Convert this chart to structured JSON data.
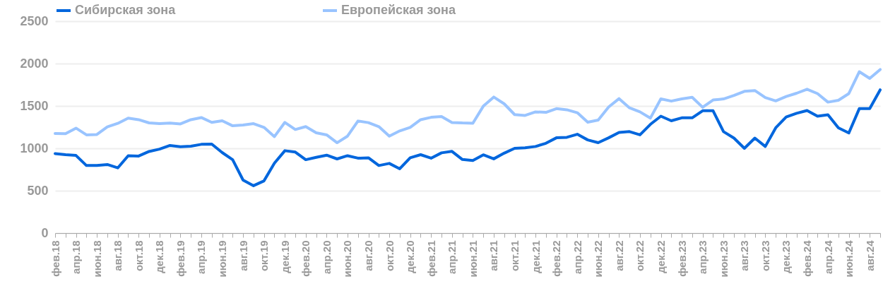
{
  "chart_data": {
    "type": "line",
    "categories": [
      "фев.18",
      null,
      "апр.18",
      null,
      "июн.18",
      null,
      "авг.18",
      null,
      "окт.18",
      null,
      "дек.18",
      null,
      "фев.19",
      null,
      "апр.19",
      null,
      "июн.19",
      null,
      "авг.19",
      null,
      "окт.19",
      null,
      "дек.19",
      null,
      "фев.20",
      null,
      "апр.20",
      null,
      "июн.20",
      null,
      "авг.20",
      null,
      "окт.20",
      null,
      "дек.20",
      null,
      "фев.21",
      null,
      "апр.21",
      null,
      "июн.21",
      null,
      "авг.21",
      null,
      "окт.21",
      null,
      "дек.21",
      null,
      "фев.22",
      null,
      "апр.22",
      null,
      "июн.22",
      null,
      "авг.22",
      null,
      "окт.22",
      null,
      "дек.22",
      null,
      "фев.23",
      null,
      "апр.23",
      null,
      "июн.23",
      null,
      "авг.23",
      null,
      "окт.23",
      null,
      "дек.23",
      null,
      "фев.24",
      null,
      "апр.24",
      null,
      "июн.24",
      null,
      "авг.24",
      null
    ],
    "series": [
      {
        "name": "Сибирская зона",
        "color": "#0066dd",
        "values": [
          938,
          925,
          916,
          797,
          797,
          809,
          769,
          913,
          909,
          963,
          991,
          1034,
          1019,
          1025,
          1047,
          1050,
          950,
          866,
          625,
          559,
          616,
          825,
          972,
          956,
          866,
          894,
          919,
          875,
          913,
          884,
          888,
          797,
          822,
          759,
          888,
          925,
          884,
          947,
          964,
          868,
          857,
          923,
          876,
          943,
          1000,
          1006,
          1022,
          1060,
          1124,
          1130,
          1166,
          1099,
          1067,
          1124,
          1188,
          1197,
          1159,
          1283,
          1379,
          1325,
          1360,
          1360,
          1443,
          1443,
          1197,
          1121,
          1000,
          1121,
          1022,
          1242,
          1369,
          1414,
          1446,
          1379,
          1395,
          1242,
          1181,
          1468,
          1468,
          1690
        ]
      },
      {
        "name": "Европейская зона",
        "color": "#99c4ff",
        "values": [
          1175,
          1172,
          1238,
          1159,
          1163,
          1253,
          1294,
          1356,
          1338,
          1300,
          1291,
          1297,
          1288,
          1338,
          1363,
          1306,
          1325,
          1266,
          1275,
          1291,
          1247,
          1138,
          1306,
          1222,
          1256,
          1184,
          1159,
          1066,
          1144,
          1322,
          1303,
          1256,
          1144,
          1206,
          1247,
          1338,
          1366,
          1375,
          1305,
          1299,
          1296,
          1497,
          1605,
          1525,
          1398,
          1388,
          1430,
          1424,
          1468,
          1455,
          1420,
          1309,
          1334,
          1487,
          1586,
          1478,
          1430,
          1357,
          1583,
          1557,
          1583,
          1602,
          1484,
          1570,
          1583,
          1624,
          1672,
          1682,
          1599,
          1560,
          1611,
          1650,
          1697,
          1646,
          1545,
          1567,
          1646,
          1904,
          1825,
          1930
        ]
      }
    ],
    "ylim": [
      0,
      2500
    ],
    "yticks": [
      0,
      500,
      1000,
      1500,
      2000,
      2500
    ],
    "grid": "y",
    "legend": "top",
    "marker": "none",
    "line_style": "solid"
  }
}
